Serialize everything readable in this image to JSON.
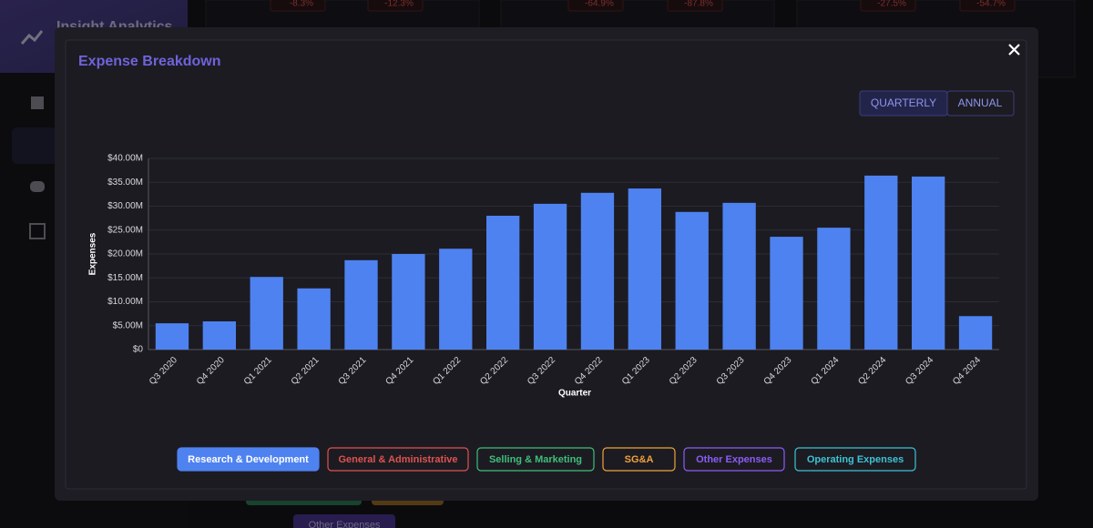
{
  "app": {
    "title": "Insight Analytics",
    "badges": [
      "-8.3%",
      "-12.3%",
      "-64.9%",
      "-87.8%",
      "-27.5%",
      "-54.7%"
    ],
    "background_chip": "Other Expenses"
  },
  "toggle": [
    "QUARTERLY",
    "ANNUAL"
  ],
  "other_filters": [
    {
      "label": "General & Administrative",
      "color": "#e0524f"
    },
    {
      "label": "Selling & Marketing",
      "color": "#3fbf7a"
    },
    {
      "label": "SG&A",
      "color": "#f0a23a"
    },
    {
      "label": "Other Expenses",
      "color": "#8b5cf6"
    },
    {
      "label": "Operating Expenses",
      "color": "#3cc3d6"
    }
  ],
  "chart_data": {
    "type": "bar",
    "title": "Expense Breakdown",
    "x_label": "Quarter",
    "y_label": "Expenses",
    "categories": [
      "Q3 2020",
      "Q4 2020",
      "Q1 2021",
      "Q2 2021",
      "Q3 2021",
      "Q4 2021",
      "Q1 2022",
      "Q2 2022",
      "Q3 2022",
      "Q4 2022",
      "Q1 2023",
      "Q2 2023",
      "Q3 2023",
      "Q4 2023",
      "Q1 2024",
      "Q2 2024",
      "Q3 2024",
      "Q4 2024"
    ],
    "series": [
      {
        "name": "Research & Development",
        "color": "#4e82f0",
        "values": [
          5500000,
          5900000,
          15200000,
          12800000,
          18700000,
          20000000,
          21100000,
          28000000,
          30500000,
          32800000,
          33700000,
          28800000,
          30700000,
          23600000,
          25500000,
          36400000,
          36200000,
          7000000
        ]
      }
    ],
    "ylim": [
      0,
      40000000
    ],
    "yticks": [
      {
        "value": 0,
        "label": "$0"
      },
      {
        "value": 5000000,
        "label": "$5.00M"
      },
      {
        "value": 10000000,
        "label": "$10.00M"
      },
      {
        "value": 15000000,
        "label": "$15.00M"
      },
      {
        "value": 20000000,
        "label": "$20.00M"
      },
      {
        "value": 25000000,
        "label": "$25.00M"
      },
      {
        "value": 30000000,
        "label": "$30.00M"
      },
      {
        "value": 35000000,
        "label": "$35.00M"
      },
      {
        "value": 40000000,
        "label": "$40.00M"
      }
    ],
    "grid": true
  }
}
